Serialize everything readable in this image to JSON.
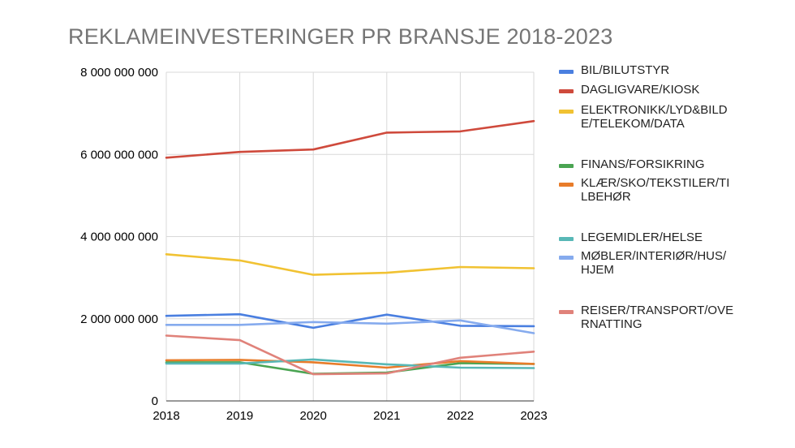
{
  "chart_data": {
    "type": "line",
    "title": "REKLAMEINVESTERINGER PR BRANSJE 2018-2023",
    "x": [
      "2018",
      "2019",
      "2020",
      "2021",
      "2022",
      "2023"
    ],
    "ylim": [
      0,
      8000000000
    ],
    "yticks": [
      0,
      2000000000,
      4000000000,
      6000000000,
      8000000000
    ],
    "ytick_labels": [
      "0",
      "2 000 000 000",
      "4 000 000 000",
      "6 000 000 000",
      "8 000 000 000"
    ],
    "grid": true,
    "legend_position": "right",
    "series": [
      {
        "name": "BIL/BILUTSTYR",
        "color": "#4a7fe0",
        "values": [
          2070000000,
          2110000000,
          1780000000,
          2100000000,
          1830000000,
          1820000000
        ]
      },
      {
        "name": "DAGLIGVARE/KIOSK",
        "color": "#cf4a3c",
        "values": [
          5920000000,
          6060000000,
          6120000000,
          6530000000,
          6560000000,
          6810000000
        ]
      },
      {
        "name": "ELEKTRONIKK/LYD&BILDE/TELEKOM/DATA",
        "color": "#f1c232",
        "values": [
          3570000000,
          3420000000,
          3070000000,
          3120000000,
          3260000000,
          3230000000
        ]
      },
      {
        "name": "FINANS/FORSIKRING",
        "color": "#4aa452",
        "values": [
          940000000,
          940000000,
          660000000,
          690000000,
          920000000,
          900000000
        ]
      },
      {
        "name": "KLÆR/SKO/TEKSTILER/TILBEHØR",
        "color": "#e87c2a",
        "values": [
          990000000,
          1000000000,
          940000000,
          810000000,
          970000000,
          900000000
        ]
      },
      {
        "name": "LEGEMIDLER/HELSE",
        "color": "#58b8b6",
        "values": [
          910000000,
          910000000,
          1010000000,
          890000000,
          810000000,
          800000000
        ]
      },
      {
        "name": "MØBLER/INTERIØR/HUS/HJEM",
        "color": "#86abee",
        "values": [
          1850000000,
          1850000000,
          1920000000,
          1880000000,
          1960000000,
          1650000000
        ]
      },
      {
        "name": "REISER/TRANSPORT/OVERNATTING",
        "color": "#e0827a",
        "values": [
          1590000000,
          1480000000,
          650000000,
          670000000,
          1050000000,
          1200000000
        ]
      }
    ]
  }
}
